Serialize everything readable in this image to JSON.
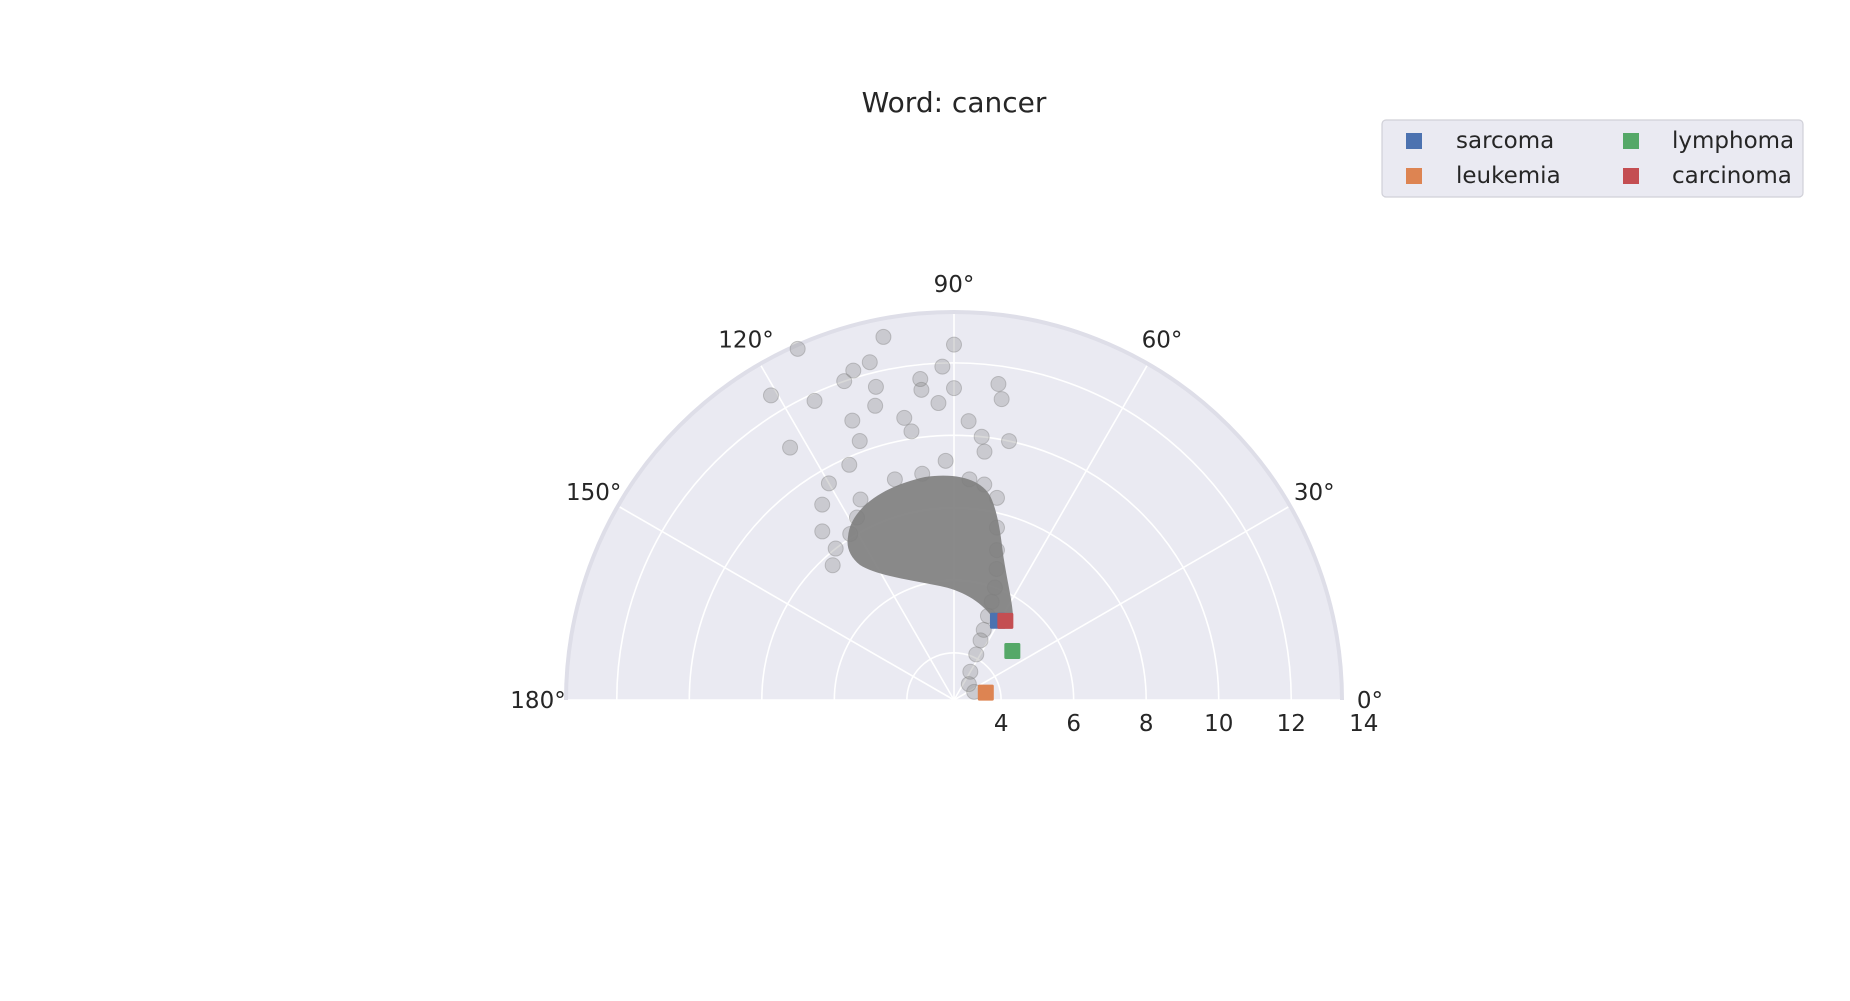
{
  "chart_data": {
    "type": "scatter",
    "projection": "polar",
    "title": "Word: cancer",
    "theta_range_deg": [
      0,
      180
    ],
    "rlim": [
      2.7,
      13.4
    ],
    "r_ticks": [
      4,
      6,
      8,
      10,
      12,
      14
    ],
    "r_tick_labels": [
      "4",
      "6",
      "8",
      "10",
      "12",
      "14"
    ],
    "theta_ticks_deg": [
      0,
      30,
      60,
      90,
      120,
      150,
      180
    ],
    "theta_tick_labels": [
      "0°",
      "30°",
      "60°",
      "90°",
      "120°",
      "150°",
      "180°"
    ],
    "grid": true,
    "background_series": {
      "name": "",
      "color": "#808080",
      "opacity": 0.3,
      "points": [
        {
          "theta": 90,
          "r": 12.5
        },
        {
          "theta": 101,
          "r": 12.9
        },
        {
          "theta": 114,
          "r": 13.3
        },
        {
          "theta": 107,
          "r": 12.2
        },
        {
          "theta": 109,
          "r": 12.0
        },
        {
          "theta": 104,
          "r": 11.6
        },
        {
          "theta": 121,
          "r": 12.5
        },
        {
          "theta": 115,
          "r": 11.8
        },
        {
          "theta": 123,
          "r": 11.0
        },
        {
          "theta": 104,
          "r": 12.3
        },
        {
          "theta": 92,
          "r": 11.9
        },
        {
          "theta": 90,
          "r": 11.3
        },
        {
          "theta": 82,
          "r": 11.5
        },
        {
          "theta": 81,
          "r": 11.1
        },
        {
          "theta": 96,
          "r": 11.6
        },
        {
          "theta": 105,
          "r": 11.1
        },
        {
          "theta": 110,
          "r": 10.9
        },
        {
          "theta": 114,
          "r": 9.8
        },
        {
          "theta": 120,
          "r": 9.6
        },
        {
          "theta": 124,
          "r": 9.2
        },
        {
          "theta": 128,
          "r": 8.6
        },
        {
          "theta": 96,
          "r": 11.3
        },
        {
          "theta": 93,
          "r": 10.9
        },
        {
          "theta": 100,
          "r": 10.6
        },
        {
          "theta": 84,
          "r": 10.0
        },
        {
          "theta": 87,
          "r": 10.4
        },
        {
          "theta": 78,
          "r": 10.0
        },
        {
          "theta": 83,
          "r": 9.6
        },
        {
          "theta": 99,
          "r": 10.2
        },
        {
          "theta": 110,
          "r": 10.3
        },
        {
          "theta": 115,
          "r": 8.8
        },
        {
          "theta": 118,
          "r": 8.4
        },
        {
          "theta": 122,
          "r": 8.1
        },
        {
          "theta": 128,
          "r": 8.0
        },
        {
          "theta": 132,
          "r": 7.7
        },
        {
          "theta": 105,
          "r": 9.0
        },
        {
          "theta": 98,
          "r": 9.0
        },
        {
          "theta": 92,
          "r": 9.3
        },
        {
          "theta": 86,
          "r": 8.8
        },
        {
          "theta": 82,
          "r": 8.7
        },
        {
          "theta": 78,
          "r": 8.4
        },
        {
          "theta": 76,
          "r": 7.6
        },
        {
          "theta": 74,
          "r": 7.0
        },
        {
          "theta": 72,
          "r": 6.5
        },
        {
          "theta": 70,
          "r": 6.0
        },
        {
          "theta": 69,
          "r": 5.6
        },
        {
          "theta": 68,
          "r": 5.2
        },
        {
          "theta": 67,
          "r": 4.8
        },
        {
          "theta": 66,
          "r": 4.5
        },
        {
          "theta": 64,
          "r": 4.1
        },
        {
          "theta": 60,
          "r": 3.6
        },
        {
          "theta": 47,
          "r": 3.3
        },
        {
          "theta": 22,
          "r": 3.3
        }
      ]
    },
    "series": [
      {
        "name": "sarcoma",
        "color": "#4c72b0",
        "points": [
          {
            "theta": 61,
            "r": 5.2
          }
        ]
      },
      {
        "name": "leukemia",
        "color": "#dd8452",
        "points": [
          {
            "theta": 13,
            "r": 3.6
          }
        ]
      },
      {
        "name": "lymphoma",
        "color": "#55a868",
        "points": [
          {
            "theta": 40,
            "r": 4.8
          }
        ]
      },
      {
        "name": "carcinoma",
        "color": "#c44e52",
        "points": [
          {
            "theta": 57,
            "r": 5.3
          }
        ]
      }
    ],
    "legend": {
      "placement": "top-right",
      "columns": 2
    }
  }
}
